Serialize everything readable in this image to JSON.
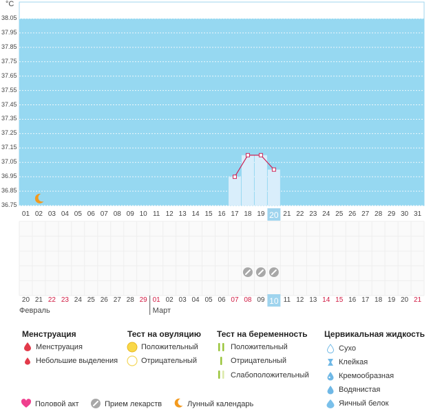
{
  "chart_data": {
    "type": "line",
    "unit": "°C",
    "y_ticks": [
      "38.05",
      "37.95",
      "37.85",
      "37.75",
      "37.65",
      "37.55",
      "37.45",
      "37.35",
      "37.25",
      "37.15",
      "37.05",
      "36.95",
      "36.85",
      "36.75"
    ],
    "ylim": [
      36.75,
      38.05
    ],
    "top_days": [
      "01",
      "02",
      "03",
      "04",
      "05",
      "06",
      "07",
      "08",
      "09",
      "10",
      "11",
      "12",
      "13",
      "14",
      "15",
      "16",
      "17",
      "18",
      "19",
      "20",
      "21",
      "22",
      "23",
      "24",
      "25",
      "26",
      "27",
      "28",
      "29",
      "30",
      "31"
    ],
    "bottom_days": [
      "20",
      "21",
      "22",
      "23",
      "24",
      "25",
      "26",
      "27",
      "28",
      "29",
      "01",
      "02",
      "03",
      "04",
      "05",
      "06",
      "07",
      "08",
      "09",
      "10",
      "11",
      "12",
      "13",
      "14",
      "15",
      "16",
      "17",
      "18",
      "19",
      "20",
      "21"
    ],
    "bottom_red_idx": [
      2,
      3,
      9,
      10,
      16,
      17,
      23,
      24,
      30
    ],
    "today_idx": 19,
    "temperatures": [
      {
        "day_idx": 16,
        "value": 36.95
      },
      {
        "day_idx": 17,
        "value": 37.1
      },
      {
        "day_idx": 18,
        "value": 37.1
      },
      {
        "day_idx": 19,
        "value": 37.0
      }
    ],
    "moon_day_idx": 1,
    "medication_days_idx": [
      17,
      18,
      19
    ],
    "months": [
      {
        "label": "Февраль",
        "start_idx": 0
      },
      {
        "label": "Март",
        "start_idx": 10
      }
    ],
    "colors": {
      "background": "#96d8f1",
      "bar": "#d9eefb",
      "line": "#cc2255",
      "today": "#9fd4ee",
      "red_day": "#d01840",
      "moon": "#f39a1e",
      "med": "#a8a8a8"
    }
  },
  "legend": {
    "menstruation": {
      "title": "Менструация",
      "items": [
        "Менструация",
        "Небольшие выделения"
      ]
    },
    "ovulation": {
      "title": "Тест на овуляцию",
      "items": [
        "Положительный",
        "Отрицательный"
      ]
    },
    "pregnancy": {
      "title": "Тест на беременность",
      "items": [
        "Положительный",
        "Отрицательный",
        "Слабоположительный"
      ]
    },
    "cervical": {
      "title": "Цервикальная жидкость",
      "items": [
        "Сухо",
        "Клейкая",
        "Кремообразная",
        "Водянистая",
        "Яичный белок"
      ]
    },
    "bottom": [
      "Половой акт",
      "Прием лекарств",
      "Лунный календарь"
    ]
  }
}
